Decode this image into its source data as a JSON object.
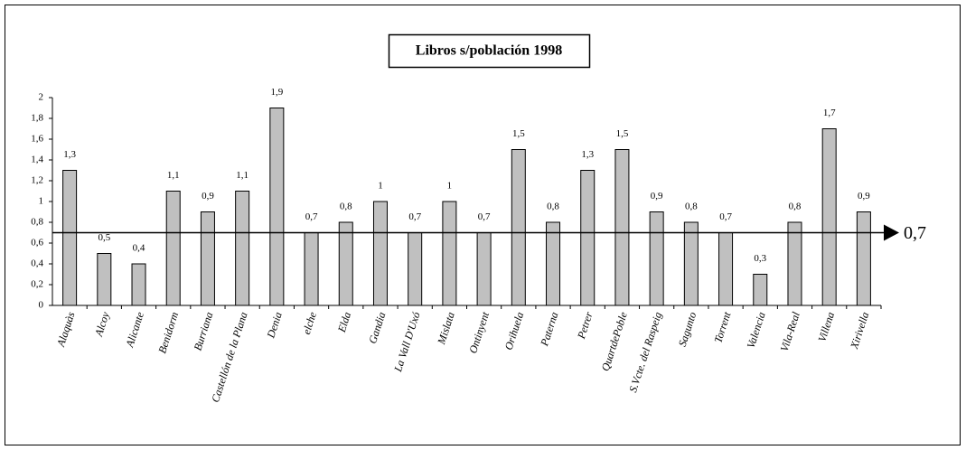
{
  "chart_data": {
    "type": "bar",
    "title": "Libros s/población 1998",
    "categories": [
      "Alaquàs",
      "Alcoy",
      "Alicante",
      "Benidorm",
      "Burriana",
      "Castellón de la Plana",
      "Denia",
      "elche",
      "Elda",
      "Gandia",
      "La Vall D'Uxó",
      "Mislata",
      "Ontinyent",
      "Orihuela",
      "Paterna",
      "Petrer",
      "QuartdePoble",
      "S.Vcte. del Raspeig",
      "Sagunto",
      "Torrent",
      "Valencia",
      "Vila-Real",
      "Villena",
      "Xirivella"
    ],
    "values": [
      1.3,
      0.5,
      0.4,
      1.1,
      0.9,
      1.1,
      1.9,
      0.7,
      0.8,
      1,
      0.7,
      1,
      0.7,
      1.5,
      0.8,
      1.3,
      1.5,
      0.9,
      0.8,
      0.7,
      0.3,
      0.8,
      1.7,
      0.9
    ],
    "value_labels": [
      "1,3",
      "0,5",
      "0,4",
      "1,1",
      "0,9",
      "1,1",
      "1,9",
      "0,7",
      "0,8",
      "1",
      "0,7",
      "1",
      "0,7",
      "1,5",
      "0,8",
      "1,3",
      "1,5",
      "0,9",
      "0,8",
      "0,7",
      "0,3",
      "0,8",
      "1,7",
      "0,9"
    ],
    "color": "#c0c0c0",
    "ylim": [
      0,
      2
    ],
    "yticks": [
      0,
      {
        "value": 0.2,
        "label": "0,2"
      },
      {
        "value": 0.4,
        "label": "0,4"
      },
      {
        "value": 0.6,
        "label": "0,6"
      },
      {
        "value": 0.8,
        "label": "0,8"
      },
      1,
      {
        "value": 1.2,
        "label": "1,2"
      },
      {
        "value": 1.4,
        "label": "1,4"
      },
      {
        "value": 1.6,
        "label": "1,6"
      },
      {
        "value": 1.8,
        "label": "1,8"
      },
      2
    ],
    "reference_line": {
      "value": 0.7,
      "label": "0,7"
    },
    "grid": false
  }
}
